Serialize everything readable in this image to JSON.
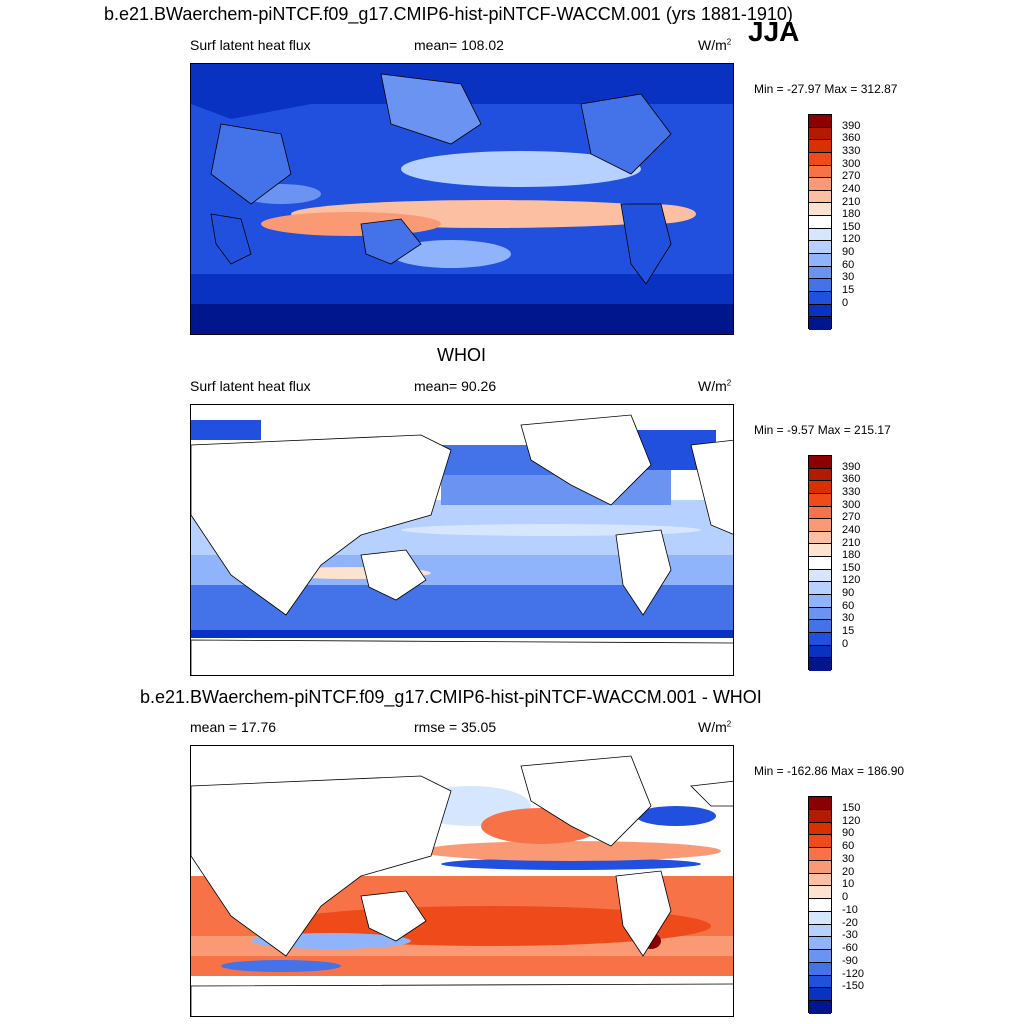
{
  "figure": {
    "season": "JJA",
    "top_title": "b.e21.BWaerchem-piNTCF.f09_g17.CMIP6-hist-piNTCF-WACCM.001 (yrs 1881-1910)",
    "mid_title": "WHOI",
    "bot_title": "b.e21.BWaerchem-piNTCF.f09_g17.CMIP6-hist-piNTCF-WACCM.001 - WHOI"
  },
  "chart_data": [
    {
      "type": "heatmap",
      "variable": "Surf latent heat flux",
      "mean_label": "mean= 108.02",
      "units": "W/m",
      "units_exp": "2",
      "minmax": "Min = -27.97 Max = 312.87",
      "colorbar": {
        "levels": [
          "390",
          "360",
          "330",
          "300",
          "270",
          "240",
          "210",
          "180",
          "150",
          "120",
          "90",
          "60",
          "30",
          "15",
          "0"
        ],
        "colors": [
          "#8b0000",
          "#b31b00",
          "#d93000",
          "#ef4a1a",
          "#f77347",
          "#fa9a75",
          "#fcbfa1",
          "#fde2cf",
          "#ffffff",
          "#d6e6ff",
          "#b6d0ff",
          "#8fb4fb",
          "#6a93f2",
          "#4472e8",
          "#2050dd",
          "#0a32c2",
          "#00168f"
        ]
      }
    },
    {
      "type": "heatmap",
      "variable": "Surf latent heat flux",
      "mean_label": "mean=  90.26",
      "units": "W/m",
      "units_exp": "2",
      "minmax": "Min =  -9.57 Max = 215.17",
      "colorbar": {
        "levels": [
          "390",
          "360",
          "330",
          "300",
          "270",
          "240",
          "210",
          "180",
          "150",
          "120",
          "90",
          "60",
          "30",
          "15",
          "0"
        ],
        "colors": [
          "#8b0000",
          "#b31b00",
          "#d93000",
          "#ef4a1a",
          "#f77347",
          "#fa9a75",
          "#fcbfa1",
          "#fde2cf",
          "#ffffff",
          "#d6e6ff",
          "#b6d0ff",
          "#8fb4fb",
          "#6a93f2",
          "#4472e8",
          "#2050dd",
          "#0a32c2",
          "#00168f"
        ]
      }
    },
    {
      "type": "heatmap",
      "variable": "mean =  17.76",
      "mean_label": "rmse =  35.05",
      "units": "W/m",
      "units_exp": "2",
      "minmax": "Min = -162.86 Max = 186.90",
      "colorbar": {
        "levels": [
          "150",
          "120",
          "90",
          "60",
          "30",
          "20",
          "10",
          "0",
          "-10",
          "-20",
          "-30",
          "-60",
          "-90",
          "-120",
          "-150"
        ],
        "colors": [
          "#8b0000",
          "#b31b00",
          "#d93000",
          "#ef4a1a",
          "#f77347",
          "#fa9a75",
          "#fcbfa1",
          "#fde2cf",
          "#ffffff",
          "#d6e6ff",
          "#b6d0ff",
          "#8fb4fb",
          "#6a93f2",
          "#4472e8",
          "#2050dd",
          "#0a32c2",
          "#00168f"
        ]
      }
    }
  ]
}
